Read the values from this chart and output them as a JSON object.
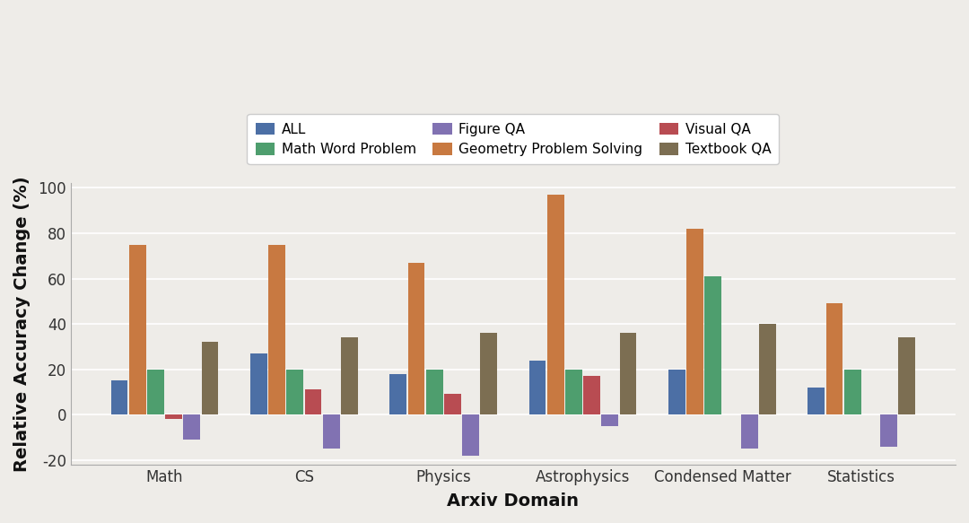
{
  "categories": [
    "Math",
    "CS",
    "Physics",
    "Astrophysics",
    "Condensed Matter",
    "Statistics"
  ],
  "series_order": [
    "ALL",
    "Geometry Problem Solving",
    "Math Word Problem",
    "Visual QA",
    "Figure QA",
    "Textbook QA"
  ],
  "series": {
    "ALL": [
      15,
      27,
      18,
      24,
      20,
      12
    ],
    "Geometry Problem Solving": [
      75,
      75,
      67,
      97,
      82,
      49
    ],
    "Math Word Problem": [
      20,
      20,
      20,
      20,
      61,
      20
    ],
    "Visual QA": [
      -2,
      11,
      9,
      17,
      0,
      0
    ],
    "Figure QA": [
      -11,
      -15,
      -18,
      -5,
      -15,
      -14
    ],
    "Textbook QA": [
      32,
      34,
      36,
      36,
      40,
      34
    ]
  },
  "colors": {
    "ALL": "#4c6fa5",
    "Geometry Problem Solving": "#c87941",
    "Math Word Problem": "#4e9e6e",
    "Visual QA": "#b84c52",
    "Figure QA": "#8172b2",
    "Textbook QA": "#7c6e52"
  },
  "legend_order": [
    "ALL",
    "Math Word Problem",
    "Figure QA",
    "Geometry Problem Solving",
    "Visual QA",
    "Textbook QA"
  ],
  "xlabel": "Arxiv Domain",
  "ylabel": "Relative Accuracy Change (%)",
  "ylim": [
    -22,
    102
  ],
  "yticks": [
    -20,
    0,
    20,
    40,
    60,
    80,
    100
  ],
  "background_color": "#eeece8",
  "grid_color": "#ffffff",
  "axis_fontsize": 14,
  "tick_fontsize": 12,
  "legend_fontsize": 11,
  "bar_width": 0.13
}
